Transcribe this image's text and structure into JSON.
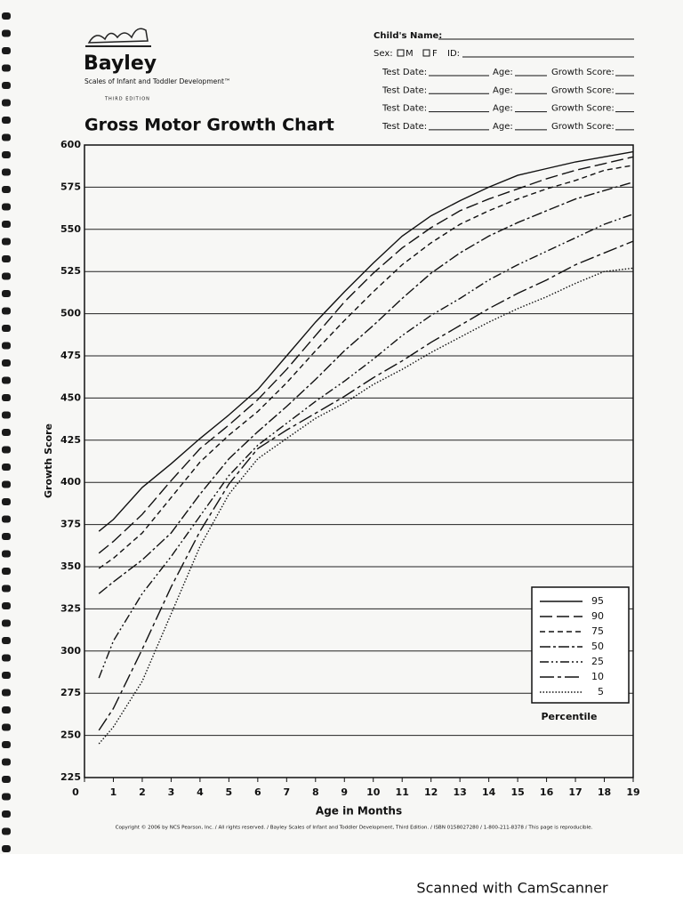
{
  "logo": {
    "name": "Bayley",
    "subtitle": "Scales of Infant and Toddler Development™",
    "edition": "THIRD EDITION"
  },
  "form": {
    "name": "Child's Name:",
    "sex": "Sex:",
    "male": "M",
    "female": "F",
    "id": "ID:",
    "tests": [
      {
        "date": "Test Date:",
        "age": "Age:",
        "score": "Growth Score:"
      },
      {
        "date": "Test Date:",
        "age": "Age:",
        "score": "Growth Score:"
      },
      {
        "date": "Test Date:",
        "age": "Age:",
        "score": "Growth Score:"
      },
      {
        "date": "Test Date:",
        "age": "Age:",
        "score": "Growth Score:"
      }
    ]
  },
  "chart_data": {
    "type": "line",
    "title": "Gross Motor Growth Chart",
    "x_label": "Age in Months",
    "y_label": "Growth Score",
    "legend_title": "Percentile",
    "x": [
      0.5,
      1,
      2,
      3,
      4,
      5,
      6,
      7,
      8,
      9,
      10,
      11,
      12,
      13,
      14,
      15,
      16,
      17,
      18,
      19
    ],
    "series": [
      {
        "name": "95",
        "color": "#111",
        "values": [
          371,
          378,
          397,
          411,
          426,
          440,
          455,
          475,
          495,
          513,
          530,
          546,
          558,
          567,
          575,
          582,
          586,
          590,
          593,
          596
        ]
      },
      {
        "name": "90",
        "color": "#111",
        "values": [
          358,
          365,
          381,
          401,
          420,
          434,
          449,
          467,
          487,
          507,
          524,
          539,
          551,
          561,
          568,
          574,
          580,
          585,
          589,
          593
        ]
      },
      {
        "name": "75",
        "color": "#111",
        "values": [
          349,
          355,
          370,
          391,
          412,
          428,
          442,
          459,
          478,
          496,
          513,
          529,
          542,
          553,
          561,
          568,
          574,
          579,
          585,
          588
        ]
      },
      {
        "name": "50",
        "color": "#111",
        "values": [
          334,
          341,
          354,
          370,
          393,
          414,
          430,
          445,
          461,
          478,
          493,
          509,
          524,
          536,
          546,
          554,
          561,
          568,
          573,
          578
        ]
      },
      {
        "name": "25",
        "color": "#111",
        "values": [
          284,
          306,
          334,
          356,
          380,
          404,
          422,
          435,
          448,
          460,
          473,
          487,
          499,
          509,
          520,
          529,
          537,
          545,
          553,
          559
        ]
      },
      {
        "name": "10",
        "color": "#111",
        "values": [
          253,
          266,
          301,
          338,
          371,
          399,
          420,
          431,
          441,
          451,
          462,
          472,
          483,
          493,
          503,
          512,
          520,
          529,
          536,
          543
        ]
      },
      {
        "name": "5",
        "color": "#111",
        "values": [
          245,
          255,
          282,
          322,
          362,
          393,
          414,
          426,
          438,
          447,
          458,
          467,
          477,
          486,
          495,
          503,
          510,
          518,
          525,
          527
        ]
      }
    ],
    "xlim": [
      0,
      19
    ],
    "ylim": [
      225,
      600
    ],
    "xticks": [
      0,
      1,
      2,
      3,
      4,
      5,
      6,
      7,
      8,
      9,
      10,
      11,
      12,
      13,
      14,
      15,
      16,
      17,
      18,
      19
    ],
    "yticks": [
      225,
      250,
      275,
      300,
      325,
      350,
      375,
      400,
      425,
      450,
      475,
      500,
      525,
      550,
      575,
      600
    ],
    "grid": true
  },
  "copyright": "Copyright © 2006 by NCS Pearson, Inc. / All rights reserved. / Bayley Scales of Infant and Toddler Development, Third Edition. / ISBN 0158027280 / 1-800-211-8378 / This page is reproducible.",
  "watermark": "Scanned with CamScanner"
}
